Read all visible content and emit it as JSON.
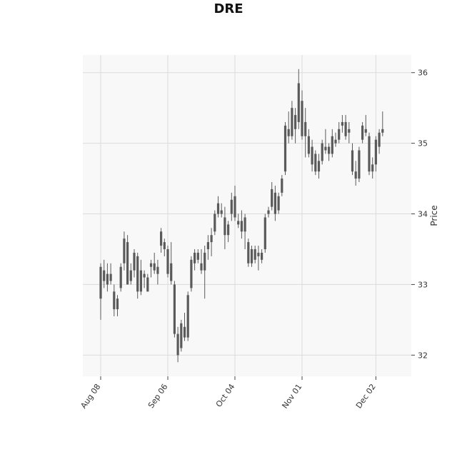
{
  "chart_data": {
    "type": "candlestick",
    "title": "DRE",
    "ylabel": "Price",
    "xlabel": "",
    "ylim": [
      31.7,
      36.25
    ],
    "y_ticks": [
      32,
      33,
      34,
      35,
      36
    ],
    "x_ticks": [
      "Aug 08",
      "Sep 06",
      "Oct 04",
      "Nov 01",
      "Dec 02"
    ],
    "grid": true,
    "candle_color": "#5a5a5a",
    "plot_bg": "#f8f8f8",
    "grid_color": "#dcdcdc",
    "candles": [
      {
        "date": "Aug 08",
        "open": 32.8,
        "high": 33.3,
        "low": 32.5,
        "close": 33.25
      },
      {
        "date": "Aug 09",
        "open": 33.2,
        "high": 33.35,
        "low": 32.95,
        "close": 33.05
      },
      {
        "date": "Aug 10",
        "open": 33.0,
        "high": 33.3,
        "low": 32.9,
        "close": 33.15
      },
      {
        "date": "Aug 11",
        "open": 33.15,
        "high": 33.3,
        "low": 33.0,
        "close": 33.05
      },
      {
        "date": "Aug 12",
        "open": 32.9,
        "high": 33.0,
        "low": 32.55,
        "close": 32.65
      },
      {
        "date": "Aug 15",
        "open": 32.65,
        "high": 32.85,
        "low": 32.55,
        "close": 32.8
      },
      {
        "date": "Aug 16",
        "open": 32.95,
        "high": 33.3,
        "low": 32.9,
        "close": 33.25
      },
      {
        "date": "Aug 17",
        "open": 33.3,
        "high": 33.75,
        "low": 33.2,
        "close": 33.65
      },
      {
        "date": "Aug 18",
        "open": 33.6,
        "high": 33.7,
        "low": 33.0,
        "close": 33.0
      },
      {
        "date": "Aug 19",
        "open": 33.05,
        "high": 33.3,
        "low": 33.0,
        "close": 33.2
      },
      {
        "date": "Aug 22",
        "open": 33.2,
        "high": 33.5,
        "low": 33.1,
        "close": 33.45
      },
      {
        "date": "Aug 23",
        "open": 33.4,
        "high": 33.45,
        "low": 32.8,
        "close": 32.9
      },
      {
        "date": "Aug 24",
        "open": 32.9,
        "high": 33.35,
        "low": 32.85,
        "close": 33.2
      },
      {
        "date": "Aug 25",
        "open": 33.15,
        "high": 33.2,
        "low": 32.95,
        "close": 33.1
      },
      {
        "date": "Aug 26",
        "open": 33.1,
        "high": 33.15,
        "low": 32.9,
        "close": 32.9
      },
      {
        "date": "Aug 29",
        "open": 33.3,
        "high": 33.35,
        "low": 33.1,
        "close": 33.25
      },
      {
        "date": "Aug 30",
        "open": 33.2,
        "high": 33.45,
        "low": 33.15,
        "close": 33.3
      },
      {
        "date": "Aug 31",
        "open": 33.15,
        "high": 33.35,
        "low": 33.0,
        "close": 33.25
      },
      {
        "date": "Sep 01",
        "open": 33.55,
        "high": 33.8,
        "low": 33.45,
        "close": 33.75
      },
      {
        "date": "Sep 02",
        "open": 33.6,
        "high": 33.65,
        "low": 33.4,
        "close": 33.5
      },
      {
        "date": "Sep 06",
        "open": 33.5,
        "high": 33.55,
        "low": 33.1,
        "close": 33.15
      },
      {
        "date": "Sep 07",
        "open": 33.3,
        "high": 33.6,
        "low": 33.0,
        "close": 33.05
      },
      {
        "date": "Sep 08",
        "open": 33.0,
        "high": 33.05,
        "low": 32.25,
        "close": 32.3
      },
      {
        "date": "Sep 09",
        "open": 32.3,
        "high": 32.4,
        "low": 31.9,
        "close": 32.0
      },
      {
        "date": "Sep 12",
        "open": 32.1,
        "high": 32.5,
        "low": 32.05,
        "close": 32.45
      },
      {
        "date": "Sep 13",
        "open": 32.4,
        "high": 32.6,
        "low": 32.2,
        "close": 32.25
      },
      {
        "date": "Sep 14",
        "open": 32.25,
        "high": 32.9,
        "low": 32.2,
        "close": 32.85
      },
      {
        "date": "Sep 15",
        "open": 32.95,
        "high": 33.4,
        "low": 32.9,
        "close": 33.35
      },
      {
        "date": "Sep 16",
        "open": 33.3,
        "high": 33.5,
        "low": 33.2,
        "close": 33.45
      },
      {
        "date": "Sep 19",
        "open": 33.45,
        "high": 33.5,
        "low": 33.3,
        "close": 33.35
      },
      {
        "date": "Sep 20",
        "open": 33.3,
        "high": 33.5,
        "low": 33.15,
        "close": 33.2
      },
      {
        "date": "Sep 21",
        "open": 33.2,
        "high": 33.55,
        "low": 32.8,
        "close": 33.45
      },
      {
        "date": "Sep 22",
        "open": 33.5,
        "high": 33.7,
        "low": 33.35,
        "close": 33.6
      },
      {
        "date": "Sep 23",
        "open": 33.6,
        "high": 33.8,
        "low": 33.4,
        "close": 33.7
      },
      {
        "date": "Sep 26",
        "open": 33.75,
        "high": 34.05,
        "low": 33.7,
        "close": 34.0
      },
      {
        "date": "Sep 27",
        "open": 34.0,
        "high": 34.25,
        "low": 33.95,
        "close": 34.15
      },
      {
        "date": "Sep 28",
        "open": 34.05,
        "high": 34.15,
        "low": 33.95,
        "close": 34.0
      },
      {
        "date": "Sep 29",
        "open": 33.95,
        "high": 34.1,
        "low": 33.5,
        "close": 33.7
      },
      {
        "date": "Sep 30",
        "open": 33.7,
        "high": 33.9,
        "low": 33.6,
        "close": 33.85
      },
      {
        "date": "Oct 03",
        "open": 34.0,
        "high": 34.3,
        "low": 33.9,
        "close": 34.2
      },
      {
        "date": "Oct 04",
        "open": 34.25,
        "high": 34.4,
        "low": 33.9,
        "close": 33.95
      },
      {
        "date": "Oct 05",
        "open": 33.85,
        "high": 34.0,
        "low": 33.8,
        "close": 33.9
      },
      {
        "date": "Oct 06",
        "open": 33.9,
        "high": 34.05,
        "low": 33.65,
        "close": 33.75
      },
      {
        "date": "Oct 07",
        "open": 33.75,
        "high": 34.0,
        "low": 33.5,
        "close": 33.95
      },
      {
        "date": "Oct 10",
        "open": 33.6,
        "high": 33.65,
        "low": 33.25,
        "close": 33.3
      },
      {
        "date": "Oct 11",
        "open": 33.3,
        "high": 33.55,
        "low": 33.25,
        "close": 33.5
      },
      {
        "date": "Oct 12",
        "open": 33.5,
        "high": 33.55,
        "low": 33.3,
        "close": 33.35
      },
      {
        "date": "Oct 13",
        "open": 33.4,
        "high": 33.55,
        "low": 33.2,
        "close": 33.45
      },
      {
        "date": "Oct 14",
        "open": 33.45,
        "high": 33.5,
        "low": 33.3,
        "close": 33.35
      },
      {
        "date": "Oct 17",
        "open": 33.5,
        "high": 34.0,
        "low": 33.45,
        "close": 33.95
      },
      {
        "date": "Oct 18",
        "open": 34.0,
        "high": 34.1,
        "low": 33.95,
        "close": 34.05
      },
      {
        "date": "Oct 19",
        "open": 34.1,
        "high": 34.45,
        "low": 34.05,
        "close": 34.35
      },
      {
        "date": "Oct 20",
        "open": 34.3,
        "high": 34.4,
        "low": 33.9,
        "close": 34.0
      },
      {
        "date": "Oct 21",
        "open": 34.05,
        "high": 34.3,
        "low": 34.0,
        "close": 34.25
      },
      {
        "date": "Oct 24",
        "open": 34.3,
        "high": 34.55,
        "low": 34.25,
        "close": 34.5
      },
      {
        "date": "Oct 25",
        "open": 34.6,
        "high": 35.3,
        "low": 34.55,
        "close": 35.25
      },
      {
        "date": "Oct 26",
        "open": 35.2,
        "high": 35.45,
        "low": 35.0,
        "close": 35.1
      },
      {
        "date": "Oct 27",
        "open": 35.1,
        "high": 35.6,
        "low": 35.05,
        "close": 35.5
      },
      {
        "date": "Oct 28",
        "open": 35.4,
        "high": 35.5,
        "low": 35.0,
        "close": 35.2
      },
      {
        "date": "Oct 31",
        "open": 35.3,
        "high": 36.05,
        "low": 35.2,
        "close": 35.85
      },
      {
        "date": "Nov 01",
        "open": 35.6,
        "high": 35.75,
        "low": 35.05,
        "close": 35.1
      },
      {
        "date": "Nov 02",
        "open": 35.1,
        "high": 35.5,
        "low": 34.8,
        "close": 35.3
      },
      {
        "date": "Nov 03",
        "open": 35.1,
        "high": 35.2,
        "low": 34.8,
        "close": 34.85
      },
      {
        "date": "Nov 04",
        "open": 34.95,
        "high": 35.05,
        "low": 34.6,
        "close": 34.7
      },
      {
        "date": "Nov 07",
        "open": 34.85,
        "high": 34.9,
        "low": 34.55,
        "close": 34.6
      },
      {
        "date": "Nov 08",
        "open": 34.6,
        "high": 34.85,
        "low": 34.5,
        "close": 34.75
      },
      {
        "date": "Nov 09",
        "open": 34.75,
        "high": 35.05,
        "low": 34.7,
        "close": 35.0
      },
      {
        "date": "Nov 10",
        "open": 34.9,
        "high": 35.2,
        "low": 34.85,
        "close": 34.95
      },
      {
        "date": "Nov 11",
        "open": 34.95,
        "high": 35.0,
        "low": 34.75,
        "close": 34.85
      },
      {
        "date": "Nov 14",
        "open": 34.85,
        "high": 35.2,
        "low": 34.8,
        "close": 35.1
      },
      {
        "date": "Nov 15",
        "open": 35.05,
        "high": 35.15,
        "low": 34.95,
        "close": 35.0
      },
      {
        "date": "Nov 16",
        "open": 35.05,
        "high": 35.3,
        "low": 35.0,
        "close": 35.2
      },
      {
        "date": "Nov 17",
        "open": 35.25,
        "high": 35.4,
        "low": 35.15,
        "close": 35.3
      },
      {
        "date": "Nov 18",
        "open": 35.3,
        "high": 35.4,
        "low": 35.05,
        "close": 35.1
      },
      {
        "date": "Nov 21",
        "open": 35.2,
        "high": 35.3,
        "low": 35.0,
        "close": 35.15
      },
      {
        "date": "Nov 22",
        "open": 34.9,
        "high": 35.0,
        "low": 34.55,
        "close": 34.6
      },
      {
        "date": "Nov 23",
        "open": 34.6,
        "high": 34.75,
        "low": 34.4,
        "close": 34.5
      },
      {
        "date": "Nov 25",
        "open": 34.5,
        "high": 34.95,
        "low": 34.45,
        "close": 34.9
      },
      {
        "date": "Nov 28",
        "open": 35.05,
        "high": 35.3,
        "low": 35.0,
        "close": 35.25
      },
      {
        "date": "Nov 29",
        "open": 35.2,
        "high": 35.4,
        "low": 35.1,
        "close": 35.15
      },
      {
        "date": "Nov 30",
        "open": 35.1,
        "high": 35.15,
        "low": 34.55,
        "close": 34.6
      },
      {
        "date": "Dec 01",
        "open": 34.6,
        "high": 34.8,
        "low": 34.5,
        "close": 34.7
      },
      {
        "date": "Dec 02",
        "open": 34.7,
        "high": 35.1,
        "low": 34.6,
        "close": 35.05
      },
      {
        "date": "Dec 05",
        "open": 34.95,
        "high": 35.2,
        "low": 34.85,
        "close": 35.15
      },
      {
        "date": "Dec 06",
        "open": 35.15,
        "high": 35.45,
        "low": 35.1,
        "close": 35.2
      }
    ]
  }
}
